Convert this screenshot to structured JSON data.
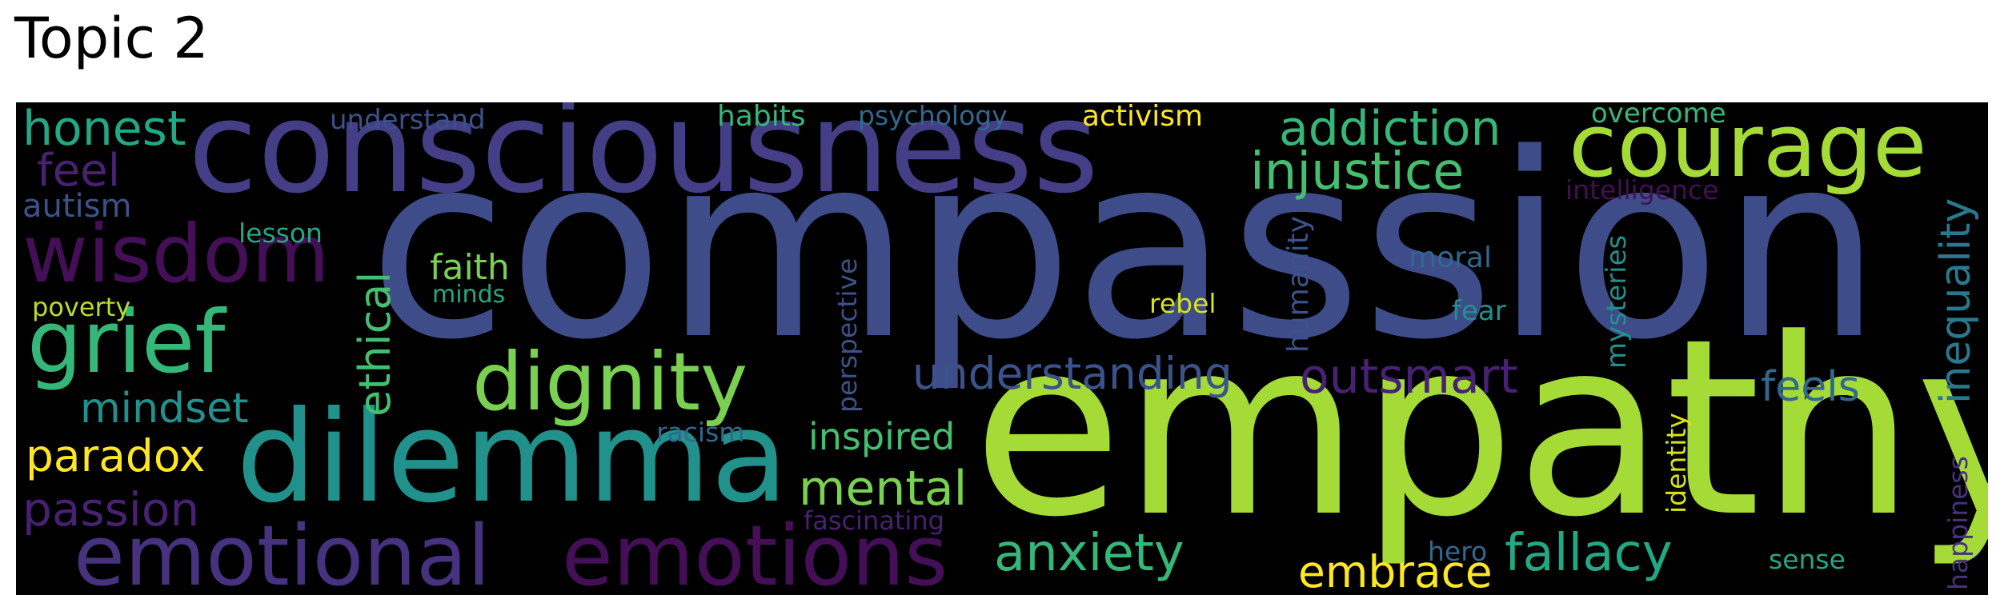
{
  "title": "Topic 2",
  "words": [
    {
      "id": "compassion",
      "text": "compassion",
      "color": "#3e4c8a"
    },
    {
      "id": "empathy",
      "text": "empathy",
      "color": "#a5db36"
    },
    {
      "id": "consciousness",
      "text": "consciousness",
      "color": "#433e85"
    },
    {
      "id": "dilemma",
      "text": "dilemma",
      "color": "#21918c"
    },
    {
      "id": "courage",
      "text": "courage",
      "color": "#a5db36"
    },
    {
      "id": "emotional",
      "text": "emotional",
      "color": "#46327e"
    },
    {
      "id": "emotions",
      "text": "emotions",
      "color": "#440f56"
    },
    {
      "id": "wisdom",
      "text": "wisdom",
      "color": "#440f56"
    },
    {
      "id": "grief",
      "text": "grief",
      "color": "#35b779"
    },
    {
      "id": "dignity",
      "text": "dignity",
      "color": "#7ad151"
    },
    {
      "id": "injustice",
      "text": "injustice",
      "color": "#44bf70"
    },
    {
      "id": "addiction",
      "text": "addiction",
      "color": "#35b779"
    },
    {
      "id": "honest",
      "text": "honest",
      "color": "#22a884"
    },
    {
      "id": "understanding",
      "text": "understanding",
      "color": "#3b528b"
    },
    {
      "id": "outsmart",
      "text": "outsmart",
      "color": "#482173"
    },
    {
      "id": "anxiety",
      "text": "anxiety",
      "color": "#35b779"
    },
    {
      "id": "fallacy",
      "text": "fallacy",
      "color": "#22a884"
    },
    {
      "id": "embrace",
      "text": "embrace",
      "color": "#fde725"
    },
    {
      "id": "mental",
      "text": "mental",
      "color": "#7ad151"
    },
    {
      "id": "paradox",
      "text": "paradox",
      "color": "#fde725"
    },
    {
      "id": "passion",
      "text": "passion",
      "color": "#482173"
    },
    {
      "id": "mindset",
      "text": "mindset",
      "color": "#21918c"
    },
    {
      "id": "feel",
      "text": "feel",
      "color": "#482173"
    },
    {
      "id": "feels",
      "text": "feels",
      "color": "#31688e"
    },
    {
      "id": "inspired",
      "text": "inspired",
      "color": "#44bf70"
    },
    {
      "id": "faith",
      "text": "faith",
      "color": "#7ad151"
    },
    {
      "id": "autism",
      "text": "autism",
      "color": "#3b528b"
    },
    {
      "id": "lesson",
      "text": "lesson",
      "color": "#22a884"
    },
    {
      "id": "poverty",
      "text": "poverty",
      "color": "#b5de2b"
    },
    {
      "id": "minds",
      "text": "minds",
      "color": "#22a884"
    },
    {
      "id": "understand",
      "text": "understand",
      "color": "#3b528b"
    },
    {
      "id": "habits",
      "text": "habits",
      "color": "#35b779"
    },
    {
      "id": "psychology",
      "text": "psychology",
      "color": "#31688e"
    },
    {
      "id": "activism",
      "text": "activism",
      "color": "#fde725"
    },
    {
      "id": "overcome",
      "text": "overcome",
      "color": "#35b779"
    },
    {
      "id": "intelligence",
      "text": "intelligence",
      "color": "#440f56"
    },
    {
      "id": "moral",
      "text": "moral",
      "color": "#31688e"
    },
    {
      "id": "fear",
      "text": "fear",
      "color": "#21918c"
    },
    {
      "id": "rebel",
      "text": "rebel",
      "color": "#d8e219"
    },
    {
      "id": "racism",
      "text": "racism",
      "color": "#31688e"
    },
    {
      "id": "fascinating",
      "text": "fascinating",
      "color": "#482173"
    },
    {
      "id": "hero",
      "text": "hero",
      "color": "#31688e"
    },
    {
      "id": "sense",
      "text": "sense",
      "color": "#22a884"
    },
    {
      "id": "ethical",
      "text": "ethical",
      "color": "#44bf70"
    },
    {
      "id": "perspective",
      "text": "perspective",
      "color": "#3b528b"
    },
    {
      "id": "humanity",
      "text": "humanity",
      "color": "#3b528b"
    },
    {
      "id": "mysteries",
      "text": "mysteries",
      "color": "#21918c"
    },
    {
      "id": "identity",
      "text": "identity",
      "color": "#d8e219"
    },
    {
      "id": "inequality",
      "text": "inequality",
      "color": "#2a788e"
    },
    {
      "id": "happiness",
      "text": "happiness",
      "color": "#46327e"
    }
  ]
}
